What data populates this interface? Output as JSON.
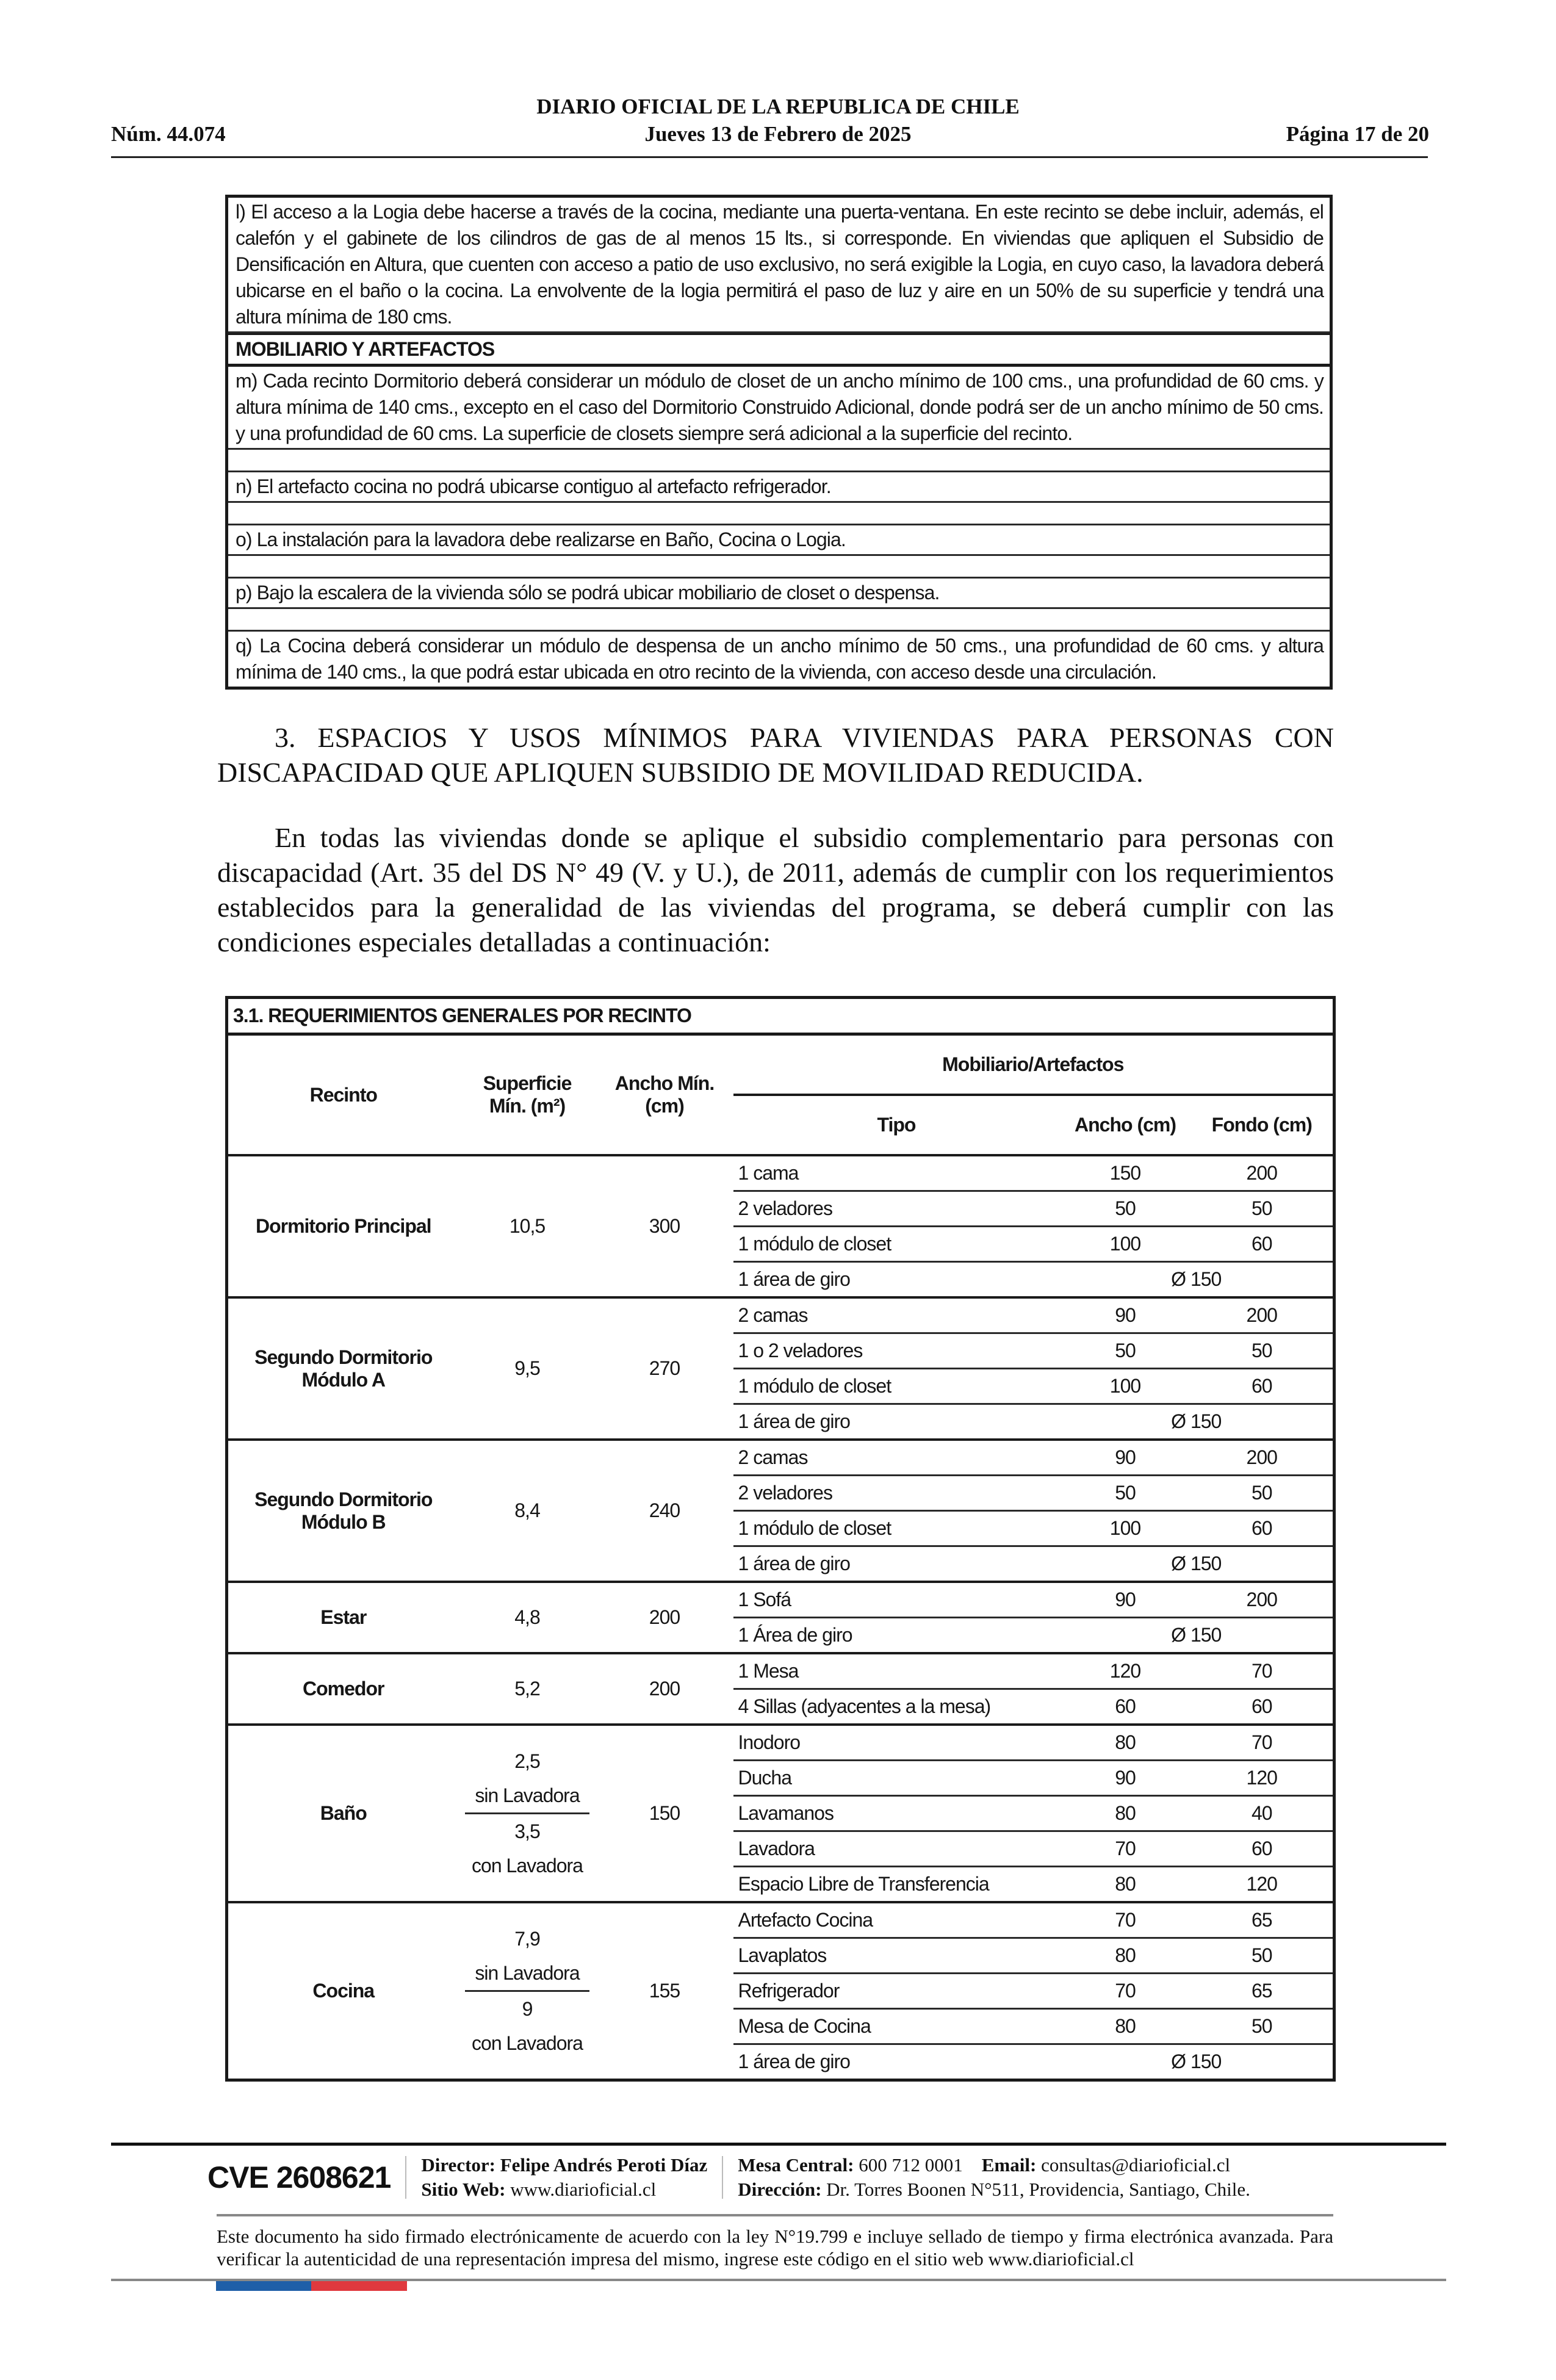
{
  "header": {
    "title": "DIARIO OFICIAL DE LA REPUBLICA DE CHILE",
    "number": "Núm. 44.074",
    "date": "Jueves 13 de Febrero de 2025",
    "page": "Página 17 de 20"
  },
  "box": {
    "l": "l) El acceso a la Logia debe hacerse a través de la cocina, mediante una puerta-ventana. En este recinto se debe incluir, además, el calefón y el gabinete de los cilindros de gas de al menos 15 lts., si corresponde. En viviendas que apliquen el Subsidio de Densificación en Altura, que cuenten con acceso a patio de uso exclusivo, no será exigible la Logia, en cuyo caso, la lavadora deberá ubicarse en el baño o la cocina. La envolvente de la logia permitirá el paso de luz y aire en un 50% de su superficie y tendrá una altura mínima de 180 cms.",
    "section": "MOBILIARIO Y ARTEFACTOS",
    "m": "m) Cada recinto Dormitorio deberá considerar un módulo de closet de un ancho mínimo de 100 cms., una profundidad de 60 cms. y altura mínima de 140 cms., excepto en el caso del Dormitorio Construido Adicional, donde podrá ser de un ancho mínimo de 50 cms. y una profundidad de 60 cms. La superficie de closets siempre será adicional a la superficie del recinto.",
    "n": "n) El artefacto cocina no podrá ubicarse contiguo al artefacto refrigerador.",
    "o": "o) La instalación para la lavadora debe realizarse en Baño, Cocina o Logia.",
    "p": "p) Bajo la escalera de la vivienda sólo se podrá ubicar mobiliario de closet o despensa.",
    "q": "q) La Cocina deberá considerar un módulo de despensa de un ancho mínimo de 50 cms., una profundidad de 60 cms. y altura mínima de 140 cms., la que podrá estar ubicada en otro recinto de la vivienda, con acceso desde una circulación."
  },
  "section3": {
    "heading": "3. ESPACIOS Y USOS MÍNIMOS PARA VIVIENDAS PARA PERSONAS CON DISCAPACIDAD QUE APLIQUEN SUBSIDIO DE MOVILIDAD REDUCIDA.",
    "intro": "En todas las viviendas donde se aplique el subsidio complementario para personas con discapacidad (Art. 35 del DS N° 49 (V. y U.), de 2011, además de cumplir con los requerimientos establecidos para la generalidad de las viviendas del programa, se deberá cumplir con las condiciones especiales detalladas a continuación:"
  },
  "table": {
    "title": "3.1. REQUERIMIENTOS GENERALES POR RECINTO",
    "headers": {
      "recinto": "Recinto",
      "superficie": "Superficie Mín. (m²)",
      "ancho_min": "Ancho Mín. (cm)",
      "mobiliario": "Mobiliario/Artefactos",
      "tipo": "Tipo",
      "ancho": "Ancho (cm)",
      "fondo": "Fondo (cm)"
    },
    "rooms": [
      {
        "name": "Dormitorio Principal",
        "superficie": "10,5",
        "ancho": "300",
        "items": [
          {
            "tipo": "1 cama",
            "ancho": "150",
            "fondo": "200"
          },
          {
            "tipo": "2 veladores",
            "ancho": "50",
            "fondo": "50"
          },
          {
            "tipo": "1 módulo de closet",
            "ancho": "100",
            "fondo": "60"
          },
          {
            "tipo": "1 área de giro",
            "diametro": "Ø 150"
          }
        ]
      },
      {
        "name": "Segundo Dormitorio Módulo A",
        "superficie": "9,5",
        "ancho": "270",
        "items": [
          {
            "tipo": "2 camas",
            "ancho": "90",
            "fondo": "200"
          },
          {
            "tipo": "1 o 2 veladores",
            "ancho": "50",
            "fondo": "50"
          },
          {
            "tipo": "1 módulo de closet",
            "ancho": "100",
            "fondo": "60"
          },
          {
            "tipo": "1 área de giro",
            "diametro": "Ø 150"
          }
        ]
      },
      {
        "name": "Segundo Dormitorio Módulo B",
        "superficie": "8,4",
        "ancho": "240",
        "items": [
          {
            "tipo": "2 camas",
            "ancho": "90",
            "fondo": "200"
          },
          {
            "tipo": "2 veladores",
            "ancho": "50",
            "fondo": "50"
          },
          {
            "tipo": "1 módulo de closet",
            "ancho": "100",
            "fondo": "60"
          },
          {
            "tipo": "1 área de giro",
            "diametro": "Ø 150"
          }
        ]
      },
      {
        "name": "Estar",
        "superficie": "4,8",
        "ancho": "200",
        "items": [
          {
            "tipo": "1 Sofá",
            "ancho": "90",
            "fondo": "200"
          },
          {
            "tipo": "1 Área de giro",
            "diametro": "Ø 150"
          }
        ]
      },
      {
        "name": "Comedor",
        "superficie": "5,2",
        "ancho": "200",
        "items": [
          {
            "tipo": "1 Mesa",
            "ancho": "120",
            "fondo": "70"
          },
          {
            "tipo": "4 Sillas (adyacentes a la mesa)",
            "ancho": "60",
            "fondo": "60"
          }
        ]
      },
      {
        "name": "Baño",
        "superficie_options": [
          {
            "value": "2,5",
            "label": "sin Lavadora"
          },
          {
            "value": "3,5",
            "label": "con Lavadora"
          }
        ],
        "ancho": "150",
        "items": [
          {
            "tipo": "Inodoro",
            "ancho": "80",
            "fondo": "70"
          },
          {
            "tipo": "Ducha",
            "ancho": "90",
            "fondo": "120"
          },
          {
            "tipo": "Lavamanos",
            "ancho": "80",
            "fondo": "40"
          },
          {
            "tipo": "Lavadora",
            "ancho": "70",
            "fondo": "60"
          },
          {
            "tipo": "Espacio Libre de Transferencia",
            "ancho": "80",
            "fondo": "120"
          }
        ]
      },
      {
        "name": "Cocina",
        "superficie_options": [
          {
            "value": "7,9",
            "label": "sin Lavadora"
          },
          {
            "value": "9",
            "label": "con Lavadora"
          }
        ],
        "ancho": "155",
        "items": [
          {
            "tipo": "Artefacto Cocina",
            "ancho": "70",
            "fondo": "65"
          },
          {
            "tipo": "Lavaplatos",
            "ancho": "80",
            "fondo": "50"
          },
          {
            "tipo": "Refrigerador",
            "ancho": "70",
            "fondo": "65"
          },
          {
            "tipo": "Mesa de Cocina",
            "ancho": "80",
            "fondo": "50"
          },
          {
            "tipo": "1 área de giro",
            "diametro": "Ø 150"
          }
        ]
      }
    ]
  },
  "footer": {
    "cve": "CVE 2608621",
    "director_label": "Director:",
    "director": "Felipe Andrés Peroti Díaz",
    "web_label": "Sitio Web:",
    "web": "www.diarioficial.cl",
    "mesa_label": "Mesa Central:",
    "mesa": "600 712 0001",
    "email_label": "Email:",
    "email": "consultas@diarioficial.cl",
    "address_label": "Dirección:",
    "address": "Dr. Torres Boonen N°511, Providencia, Santiago, Chile.",
    "signature_note": "Este documento ha sido firmado electrónicamente de acuerdo con la ley N°19.799 e incluye sellado de tiempo y firma electrónica avanzada. Para verificar la autenticidad de una representación impresa del mismo, ingrese este código en el sitio web www.diarioficial.cl",
    "colors": {
      "blue": "#1f5fa8",
      "red": "#e0393e"
    }
  }
}
